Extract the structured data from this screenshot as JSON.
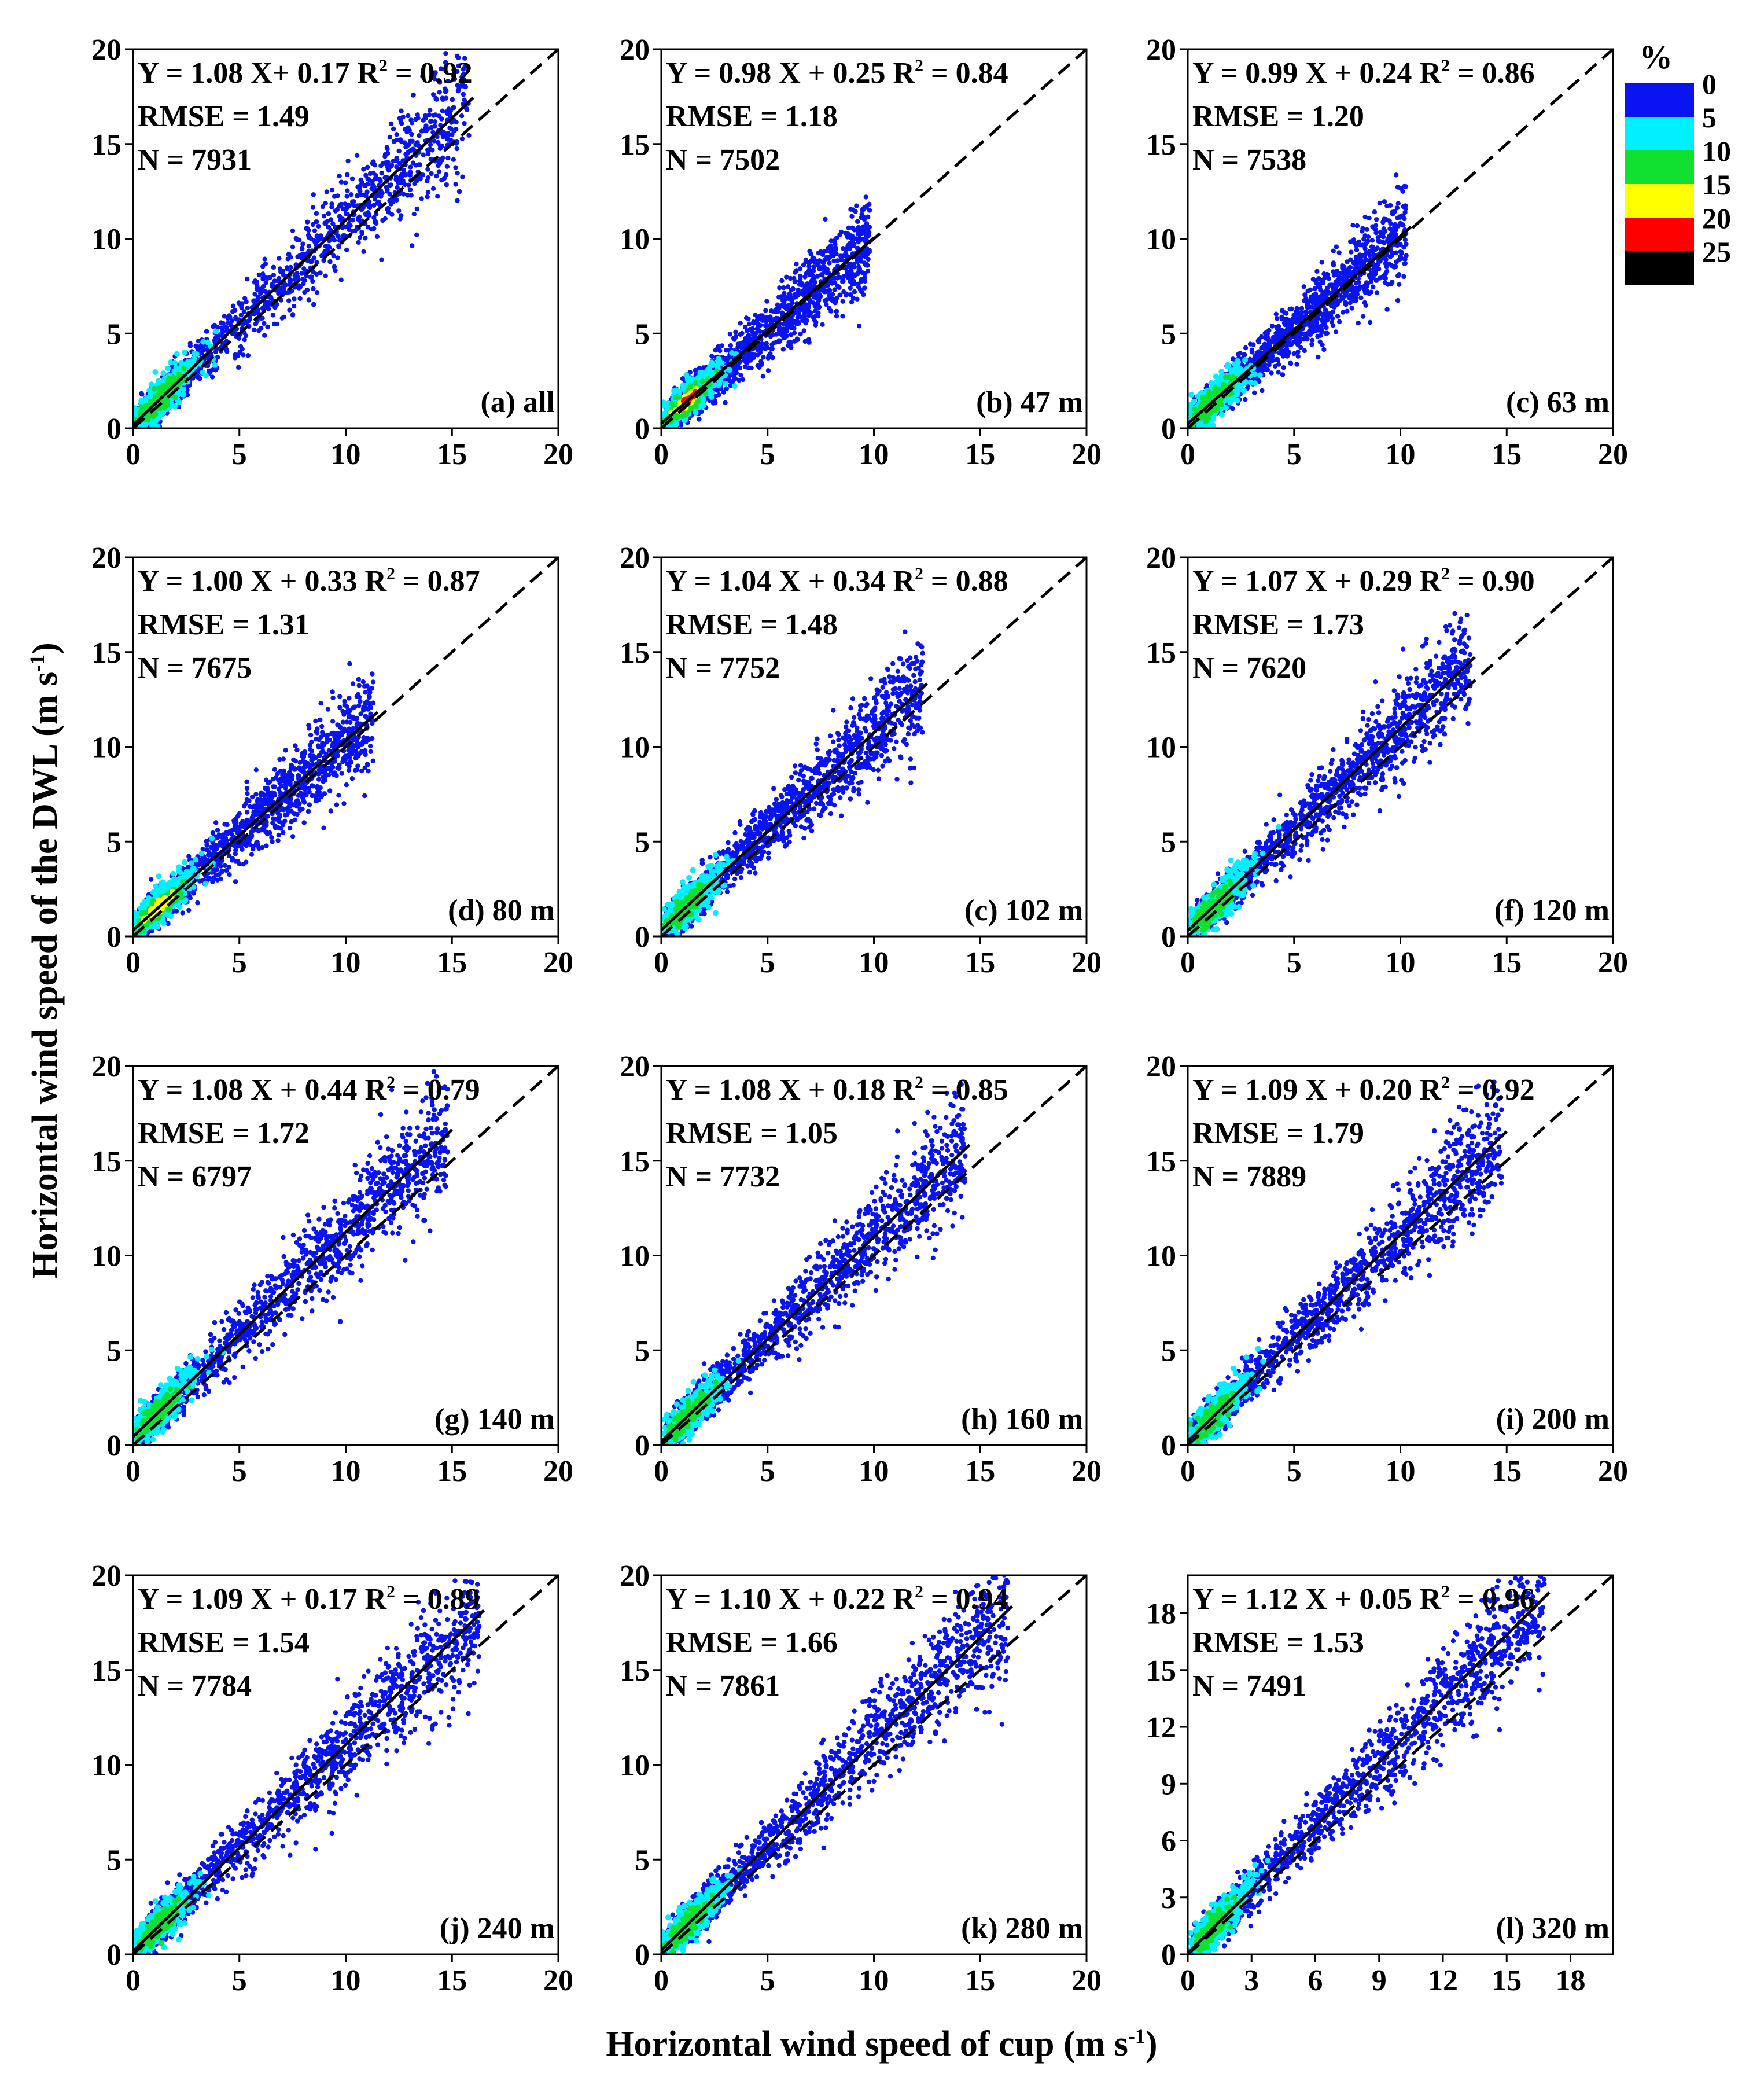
{
  "figure": {
    "ylabel": "Horizontal wind speed of the DWL (m s",
    "ylabel_sup": "-1",
    "ylabel_end": ")",
    "xlabel": "Horizontal wind speed of cup (m s",
    "xlabel_sup": "-1",
    "xlabel_end": ")"
  },
  "legend": {
    "title": "%",
    "bands": [
      {
        "color": "#0a14f0"
      },
      {
        "color": "#00f0ff"
      },
      {
        "color": "#10e030"
      },
      {
        "color": "#ffff00"
      },
      {
        "color": "#ff0000"
      },
      {
        "color": "#000000"
      }
    ],
    "labels": [
      "0",
      "5",
      "10",
      "15",
      "20",
      "25"
    ]
  },
  "chart_data": [
    {
      "type": "scatter",
      "panel_label": "(a) all",
      "eq_a": "Y = 1.08 X+ 0.17 R",
      "r2": "0.92",
      "rmse": "RMSE = 1.49",
      "n": "N = 7931",
      "slope": 1.08,
      "intercept": 0.17,
      "rmse_value": 1.49,
      "count": 7931,
      "xlim": [
        0,
        20
      ],
      "ylim": [
        0,
        20
      ],
      "xticks": [
        "0",
        "5",
        "10",
        "15",
        "20"
      ],
      "yticks": [
        "0",
        "5",
        "10",
        "15",
        "20"
      ],
      "spread_max": 15.5,
      "dense_max": 2.6
    },
    {
      "type": "scatter",
      "panel_label": "(b) 47 m",
      "eq_a": "Y = 0.98 X + 0.25 R",
      "r2": "0.84",
      "rmse": "RMSE = 1.18",
      "n": "N = 7502",
      "slope": 0.98,
      "intercept": 0.25,
      "rmse_value": 1.18,
      "count": 7502,
      "xlim": [
        0,
        20
      ],
      "ylim": [
        0,
        20
      ],
      "xticks": [
        "0",
        "5",
        "10",
        "15",
        "20"
      ],
      "yticks": [
        "0",
        "5",
        "10",
        "15",
        "20"
      ],
      "spread_max": 9.5,
      "dense_max": 2.4
    },
    {
      "type": "scatter",
      "panel_label": "(c) 63 m",
      "eq_a": "Y = 0.99 X + 0.24 R",
      "r2": "0.86",
      "rmse": "RMSE = 1.20",
      "n": "N = 7538",
      "slope": 0.99,
      "intercept": 0.24,
      "rmse_value": 1.2,
      "count": 7538,
      "xlim": [
        0,
        20
      ],
      "ylim": [
        0,
        20
      ],
      "xticks": [
        "0",
        "5",
        "10",
        "15",
        "20"
      ],
      "yticks": [
        "0",
        "5",
        "10",
        "15",
        "20"
      ],
      "spread_max": 10.0,
      "dense_max": 2.4
    },
    {
      "type": "scatter",
      "panel_label": "(d) 80 m",
      "eq_a": "Y = 1.00 X + 0.33 R",
      "r2": "0.87",
      "rmse": "RMSE = 1.31",
      "n": "N = 7675",
      "slope": 1.0,
      "intercept": 0.33,
      "rmse_value": 1.31,
      "count": 7675,
      "xlim": [
        0,
        20
      ],
      "ylim": [
        0,
        20
      ],
      "xticks": [
        "0",
        "5",
        "10",
        "15",
        "20"
      ],
      "yticks": [
        "0",
        "5",
        "10",
        "15",
        "20"
      ],
      "spread_max": 11.0,
      "dense_max": 2.4
    },
    {
      "type": "scatter",
      "panel_label": "(c) 102 m",
      "eq_a": "Y = 1.04 X + 0.34 R",
      "r2": "0.88",
      "rmse": "RMSE = 1.48",
      "n": "N = 7752",
      "slope": 1.04,
      "intercept": 0.34,
      "rmse_value": 1.48,
      "count": 7752,
      "xlim": [
        0,
        20
      ],
      "ylim": [
        0,
        20
      ],
      "xticks": [
        "0",
        "5",
        "10",
        "15",
        "20"
      ],
      "yticks": [
        "0",
        "5",
        "10",
        "15",
        "20"
      ],
      "spread_max": 12.0,
      "dense_max": 2.4
    },
    {
      "type": "scatter",
      "panel_label": "(f) 120 m",
      "eq_a": "Y = 1.07 X + 0.29 R",
      "r2": "0.90",
      "rmse": "RMSE = 1.73",
      "n": "N = 7620",
      "slope": 1.07,
      "intercept": 0.29,
      "rmse_value": 1.73,
      "count": 7620,
      "xlim": [
        0,
        20
      ],
      "ylim": [
        0,
        20
      ],
      "xticks": [
        "0",
        "5",
        "10",
        "15",
        "20"
      ],
      "yticks": [
        "0",
        "5",
        "10",
        "15",
        "20"
      ],
      "spread_max": 13.0,
      "dense_max": 2.4
    },
    {
      "type": "scatter",
      "panel_label": "(g) 140 m",
      "eq_a": "Y = 1.08 X + 0.44 R",
      "r2": "0.79",
      "rmse": "RMSE = 1.72",
      "n": "N = 6797",
      "slope": 1.08,
      "intercept": 0.44,
      "rmse_value": 1.72,
      "count": 6797,
      "xlim": [
        0,
        20
      ],
      "ylim": [
        0,
        20
      ],
      "xticks": [
        "0",
        "5",
        "10",
        "15",
        "20"
      ],
      "yticks": [
        "0",
        "5",
        "10",
        "15",
        "20"
      ],
      "spread_max": 14.5,
      "dense_max": 2.4
    },
    {
      "type": "scatter",
      "panel_label": "(h) 160 m",
      "eq_a": "Y = 1.08 X + 0.18 R",
      "r2": "0.85",
      "rmse": "RMSE = 1.05",
      "n": "N = 7732",
      "slope": 1.08,
      "intercept": 0.18,
      "rmse_value": 1.05,
      "count": 7732,
      "xlim": [
        0,
        20
      ],
      "ylim": [
        0,
        20
      ],
      "xticks": [
        "0",
        "5",
        "10",
        "15",
        "20"
      ],
      "yticks": [
        "0",
        "5",
        "10",
        "15",
        "20"
      ],
      "spread_max": 14.0,
      "dense_max": 2.4
    },
    {
      "type": "scatter",
      "panel_label": "(i) 200 m",
      "eq_a": "Y = 1.09 X + 0.20 R",
      "r2": "0.92",
      "rmse": "RMSE = 1.79",
      "n": "N = 7889",
      "slope": 1.09,
      "intercept": 0.2,
      "rmse_value": 1.79,
      "count": 7889,
      "xlim": [
        0,
        20
      ],
      "ylim": [
        0,
        20
      ],
      "xticks": [
        "0",
        "5",
        "10",
        "15",
        "20"
      ],
      "yticks": [
        "0",
        "5",
        "10",
        "15",
        "20"
      ],
      "spread_max": 14.5,
      "dense_max": 2.4
    },
    {
      "type": "scatter",
      "panel_label": "(j) 240 m",
      "eq_a": "Y = 1.09 X + 0.17 R",
      "r2": "0.89",
      "rmse": "RMSE = 1.54",
      "n": "N = 7784",
      "slope": 1.09,
      "intercept": 0.17,
      "rmse_value": 1.54,
      "count": 7784,
      "xlim": [
        0,
        20
      ],
      "ylim": [
        0,
        20
      ],
      "xticks": [
        "0",
        "5",
        "10",
        "15",
        "20"
      ],
      "yticks": [
        "0",
        "5",
        "10",
        "15",
        "20"
      ],
      "spread_max": 16.0,
      "dense_max": 2.4
    },
    {
      "type": "scatter",
      "panel_label": "(k) 280 m",
      "eq_a": "Y = 1.10 X + 0.22 R",
      "r2": "0.94",
      "rmse": "RMSE = 1.66",
      "n": "N = 7861",
      "slope": 1.1,
      "intercept": 0.22,
      "rmse_value": 1.66,
      "count": 7861,
      "xlim": [
        0,
        20
      ],
      "ylim": [
        0,
        20
      ],
      "xticks": [
        "0",
        "5",
        "10",
        "15",
        "20"
      ],
      "yticks": [
        "0",
        "5",
        "10",
        "15",
        "20"
      ],
      "spread_max": 16.0,
      "dense_max": 2.4
    },
    {
      "type": "scatter",
      "panel_label": "(l) 320 m",
      "eq_a": "Y = 1.12 X + 0.05 R",
      "r2": "0.96",
      "rmse": "RMSE = 1.53",
      "n": "N = 7491",
      "slope": 1.12,
      "intercept": 0.05,
      "rmse_value": 1.53,
      "count": 7491,
      "xlim": [
        0,
        20
      ],
      "ylim": [
        0,
        20
      ],
      "xticks": [
        "0",
        "3",
        "6",
        "9",
        "12",
        "15",
        "18"
      ],
      "yticks": [
        "0",
        "3",
        "6",
        "9",
        "12",
        "15",
        "18"
      ],
      "spread_max": 16.5,
      "dense_max": 2.4
    }
  ]
}
